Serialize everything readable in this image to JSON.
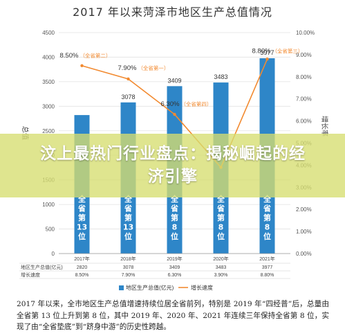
{
  "page": {
    "banner_title": "汶上最热门行业盘点：揭秘崛起的经济引擎",
    "paragraph": "2017 年以来，全市地区生产总值增速持续位居全省前列，特别是 2019 年“四经普”后，总量由全省第 13 位上升到第 8 位，其中 2019 年、2020 年、2021 年连续三年保持全省第 8 位，实现了由“全省垫底”到“跻身中游”的历史性跨越。"
  },
  "chart_data": {
    "type": "bar",
    "title": "2017 年以来菏泽市地区生产总值情况",
    "categories": [
      "2017年",
      "2018年",
      "2019年",
      "2020年",
      "2021年"
    ],
    "ylabel_left": "总值",
    "ylabel_right": "增长率",
    "y_left_ticks": [
      "0",
      "500",
      "1000",
      "1500",
      "2000",
      "2500",
      "3000",
      "3500",
      "4000",
      "4500"
    ],
    "y_right_ticks": [
      "0.00%",
      "1.00%",
      "2.00%",
      "3.00%",
      "4.00%",
      "5.00%",
      "6.00%",
      "7.00%",
      "8.00%",
      "9.00%",
      "10.00%"
    ],
    "ylim_left": [
      0,
      4500
    ],
    "ylim_right": [
      0,
      10
    ],
    "series": [
      {
        "name": "地区生产总值(亿元)",
        "type": "bar",
        "color": "#2e86c8",
        "values": [
          2820,
          3078,
          3409,
          3483,
          3977
        ],
        "value_labels": [
          "",
          "3078",
          "3409",
          "3483",
          "3977"
        ],
        "rank_labels": [
          "全省第13位",
          "全省第13位",
          "全省第8位",
          "全省第8位",
          "全省第8位"
        ]
      },
      {
        "name": "增长速度",
        "type": "line",
        "color": "#f28a30",
        "values": [
          8.5,
          7.9,
          6.3,
          3.9,
          8.8
        ],
        "point_labels": [
          "8.50%（全省第二）",
          "7.90%（全省第一）",
          "6.30%（全省第四）",
          "",
          "8.80%（全省第三）"
        ]
      }
    ],
    "table": {
      "row_headers": [
        "地区生产总值(亿元)",
        "增长速度"
      ],
      "rows": [
        [
          "2820",
          "3078",
          "3409",
          "3483",
          "3977"
        ],
        [
          "8.50%",
          "7.90%",
          "6.30%",
          "3.90%",
          "8.80%"
        ]
      ]
    },
    "legend": [
      "地区生产总值(亿元)",
      "增长速度"
    ],
    "legend_position": "bottom"
  }
}
